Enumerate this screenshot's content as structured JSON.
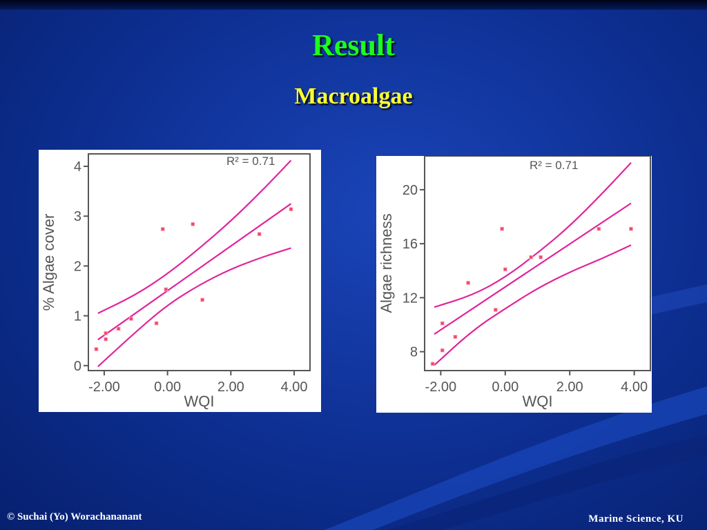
{
  "slide": {
    "title": "Result",
    "subtitle": "Macroalgae",
    "footer_left": "© Suchai (Yo) Worachananant",
    "footer_right": "Marine Science, KU"
  },
  "colors": {
    "title": "#1cff1c",
    "subtitle": "#ffff33",
    "regression_line": "#e0249a",
    "points": "#f04a6a",
    "axis": "#555555"
  },
  "chart_data": [
    {
      "type": "scatter",
      "title": "",
      "xlabel": "WQI",
      "ylabel": "% Algae cover",
      "annotation": "R² = 0.71",
      "xlim": [
        -2.5,
        4.5
      ],
      "ylim": [
        -0.1,
        4.25
      ],
      "xticks": [
        -2,
        0,
        2,
        4
      ],
      "xtick_labels": [
        "-2.00",
        "0.00",
        "2.00",
        "4.00"
      ],
      "yticks": [
        0,
        1,
        2,
        3,
        4
      ],
      "ytick_labels": [
        "0",
        "1",
        "2",
        "3",
        "4"
      ],
      "grid": false,
      "points": [
        {
          "x": -2.25,
          "y": 0.33
        },
        {
          "x": -1.95,
          "y": 0.53
        },
        {
          "x": -1.95,
          "y": 0.65
        },
        {
          "x": -1.55,
          "y": 0.74
        },
        {
          "x": -1.15,
          "y": 0.94
        },
        {
          "x": -0.35,
          "y": 0.85
        },
        {
          "x": -0.15,
          "y": 2.74
        },
        {
          "x": -0.05,
          "y": 1.53
        },
        {
          "x": 0.8,
          "y": 2.84
        },
        {
          "x": 1.1,
          "y": 1.32
        },
        {
          "x": 2.9,
          "y": 2.64
        },
        {
          "x": 3.9,
          "y": 3.14
        }
      ],
      "fit_line": [
        [
          -2.2,
          0.52
        ],
        [
          3.9,
          3.25
        ]
      ],
      "upper_band": [
        [
          -2.2,
          1.05
        ],
        [
          -1.0,
          1.42
        ],
        [
          0.0,
          1.84
        ],
        [
          1.0,
          2.35
        ],
        [
          2.0,
          2.9
        ],
        [
          3.0,
          3.52
        ],
        [
          3.9,
          4.12
        ]
      ],
      "lower_band": [
        [
          -2.2,
          -0.02
        ],
        [
          -1.0,
          0.68
        ],
        [
          0.0,
          1.22
        ],
        [
          1.0,
          1.62
        ],
        [
          2.0,
          1.94
        ],
        [
          3.0,
          2.18
        ],
        [
          3.9,
          2.36
        ]
      ]
    },
    {
      "type": "scatter",
      "title": "",
      "xlabel": "WQI",
      "ylabel": "Algae richness",
      "annotation": "R² = 0.71",
      "xlim": [
        -2.5,
        4.5
      ],
      "ylim": [
        6.6,
        22.5
      ],
      "xticks": [
        -2,
        0,
        2,
        4
      ],
      "xtick_labels": [
        "-2.00",
        "0.00",
        "2.00",
        "4.00"
      ],
      "yticks": [
        8,
        12,
        16,
        20
      ],
      "ytick_labels": [
        "8",
        "12",
        "16",
        "20"
      ],
      "grid": false,
      "points": [
        {
          "x": -2.25,
          "y": 7.1
        },
        {
          "x": -1.95,
          "y": 8.1
        },
        {
          "x": -1.95,
          "y": 10.1
        },
        {
          "x": -1.55,
          "y": 9.1
        },
        {
          "x": -1.15,
          "y": 13.1
        },
        {
          "x": -0.3,
          "y": 11.1
        },
        {
          "x": -0.1,
          "y": 17.1
        },
        {
          "x": 0.0,
          "y": 14.1
        },
        {
          "x": 0.8,
          "y": 15.0
        },
        {
          "x": 1.1,
          "y": 15.0
        },
        {
          "x": 2.9,
          "y": 17.1
        },
        {
          "x": 3.9,
          "y": 17.1
        }
      ],
      "fit_line": [
        [
          -2.2,
          9.3
        ],
        [
          3.9,
          19.0
        ]
      ],
      "upper_band": [
        [
          -2.2,
          11.3
        ],
        [
          -1.0,
          12.2
        ],
        [
          0.0,
          13.5
        ],
        [
          1.0,
          15.3
        ],
        [
          2.0,
          17.3
        ],
        [
          3.0,
          19.7
        ],
        [
          3.9,
          22.0
        ]
      ],
      "lower_band": [
        [
          -2.2,
          7.0
        ],
        [
          -1.0,
          9.6
        ],
        [
          0.0,
          11.2
        ],
        [
          1.0,
          12.7
        ],
        [
          2.0,
          13.9
        ],
        [
          3.0,
          14.9
        ],
        [
          3.9,
          15.9
        ]
      ]
    }
  ]
}
